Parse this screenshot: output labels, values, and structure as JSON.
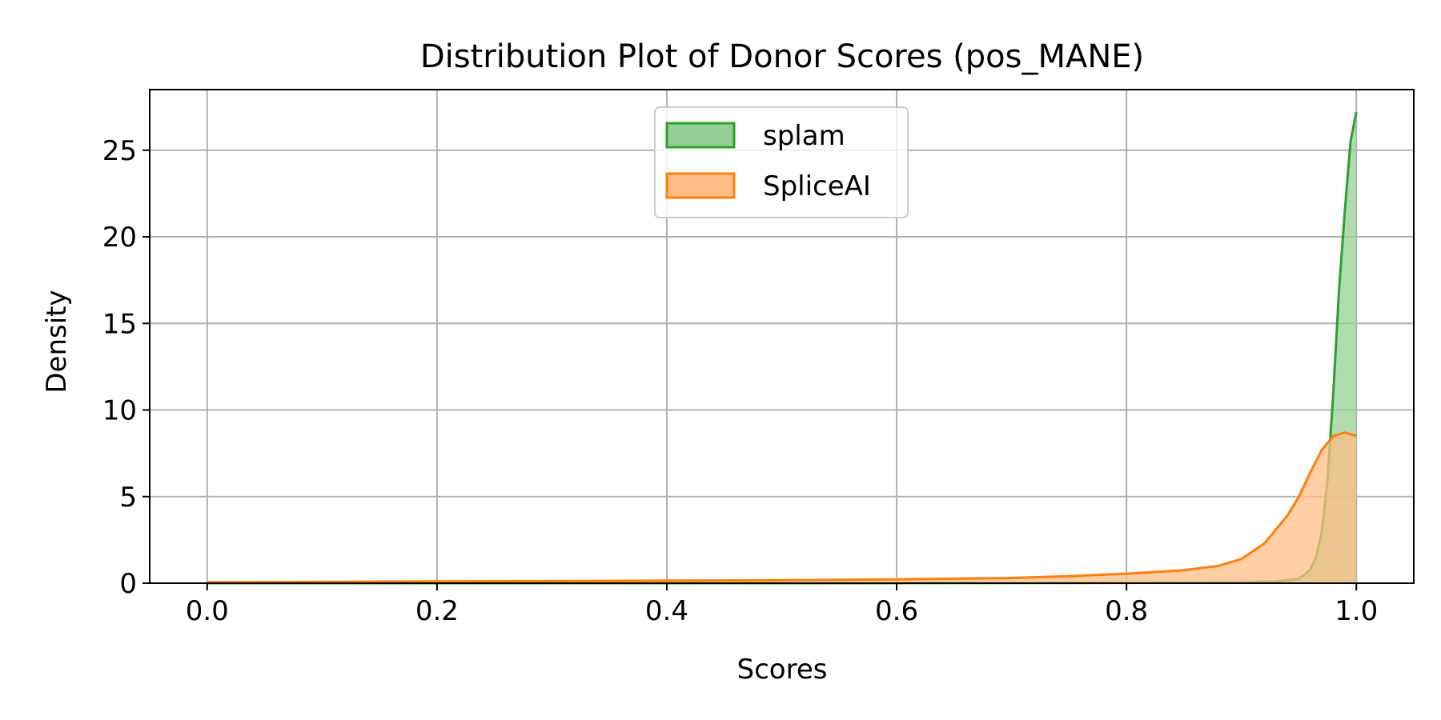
{
  "chart_data": {
    "type": "area",
    "title": "Distribution Plot of Donor Scores (pos_MANE)",
    "xlabel": "Scores",
    "ylabel": "Density",
    "xlim": [
      -0.05,
      1.05
    ],
    "ylim": [
      0,
      28.5
    ],
    "xticks": [
      0.0,
      0.2,
      0.4,
      0.6,
      0.8,
      1.0
    ],
    "xtick_labels": [
      "0.0",
      "0.2",
      "0.4",
      "0.6",
      "0.8",
      "1.0"
    ],
    "yticks": [
      0,
      5,
      10,
      15,
      20,
      25
    ],
    "ytick_labels": [
      "0",
      "5",
      "10",
      "15",
      "20",
      "25"
    ],
    "grid": true,
    "legend_position": "top-center",
    "series": [
      {
        "name": "splam",
        "color": "#2ca02c",
        "fill": "#96cf96",
        "x": [
          0.0,
          0.5,
          0.8,
          0.9,
          0.93,
          0.95,
          0.955,
          0.96,
          0.965,
          0.97,
          0.975,
          0.98,
          0.985,
          0.99,
          0.995,
          1.0
        ],
        "y": [
          0.0,
          0.0,
          0.02,
          0.05,
          0.1,
          0.25,
          0.5,
          0.8,
          1.5,
          3.0,
          6.0,
          11.0,
          17.0,
          21.5,
          25.5,
          27.2
        ]
      },
      {
        "name": "SpliceAI",
        "color": "#ff7f0e",
        "fill": "#ffbe86",
        "x": [
          0.0,
          0.1,
          0.2,
          0.3,
          0.4,
          0.5,
          0.6,
          0.7,
          0.75,
          0.8,
          0.85,
          0.88,
          0.9,
          0.92,
          0.94,
          0.95,
          0.96,
          0.97,
          0.98,
          0.99,
          1.0
        ],
        "y": [
          0.05,
          0.08,
          0.1,
          0.12,
          0.15,
          0.17,
          0.22,
          0.3,
          0.4,
          0.55,
          0.75,
          1.0,
          1.4,
          2.3,
          3.9,
          5.0,
          6.4,
          7.7,
          8.5,
          8.7,
          8.5
        ]
      }
    ]
  }
}
